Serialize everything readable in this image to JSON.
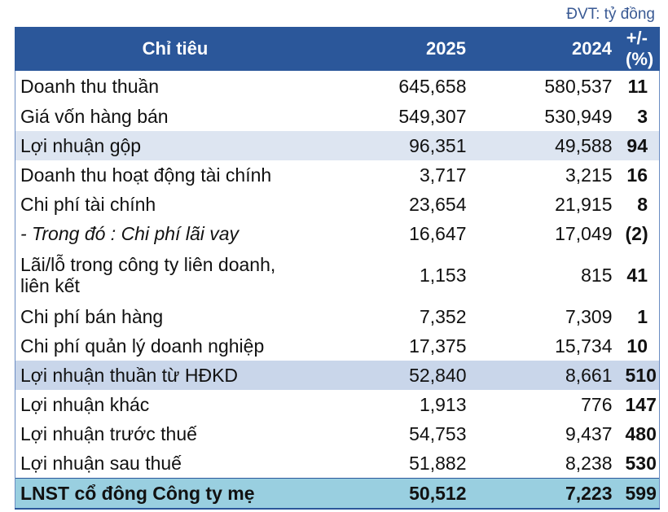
{
  "unit_label": "ĐVT: tỷ đồng",
  "colors": {
    "header_bg": "#2b579a",
    "positive": "#2e8b57",
    "negative": "#e00000",
    "final_row_bg": "#99cfe0"
  },
  "header": {
    "label": "Chỉ tiêu",
    "y2025": "2025",
    "y2024": "2024",
    "change": "+/- (%)"
  },
  "rows": [
    {
      "label": "Doanh thu thuần",
      "y2025": "645,658",
      "y2024": "580,537",
      "change": "11"
    },
    {
      "label": "Giá vốn hàng bán",
      "y2025": "549,307",
      "y2024": "530,949",
      "change": "3"
    },
    {
      "label": "Lợi nhuận gộp",
      "y2025": "96,351",
      "y2024": "49,588",
      "change": "94"
    },
    {
      "label": "Doanh thu hoạt động tài chính",
      "y2025": "3,717",
      "y2024": "3,215",
      "change": "16"
    },
    {
      "label": "Chi phí tài chính",
      "y2025": "23,654",
      "y2024": "21,915",
      "change": "8"
    },
    {
      "label": "- Trong đó : Chi phí lãi vay",
      "y2025": "16,647",
      "y2024": "17,049",
      "change": "(2)"
    },
    {
      "label": "Lãi/lỗ trong công ty liên doanh,",
      "label_line2": "liên kết",
      "y2025": "1,153",
      "y2024": "815",
      "change": "41"
    },
    {
      "label": "Chi phí bán hàng",
      "y2025": "7,352",
      "y2024": "7,309",
      "change": "1"
    },
    {
      "label": "Chi phí quản lý doanh nghiệp",
      "y2025": "17,375",
      "y2024": "15,734",
      "change": "10"
    },
    {
      "label": "Lợi nhuận thuần từ HĐKD",
      "y2025": "52,840",
      "y2024": "8,661",
      "change": "510"
    },
    {
      "label": "Lợi nhuận khác",
      "y2025": "1,913",
      "y2024": "776",
      "change": "147"
    },
    {
      "label": "Lợi nhuận trước thuế",
      "y2025": "54,753",
      "y2024": "9,437",
      "change": "480"
    },
    {
      "label": "Lợi nhuận sau thuế",
      "y2025": "51,882",
      "y2024": "8,238",
      "change": "530"
    },
    {
      "label": "LNST cổ đông Công ty mẹ",
      "y2025": "50,512",
      "y2024": "7,223",
      "change": "599"
    }
  ]
}
